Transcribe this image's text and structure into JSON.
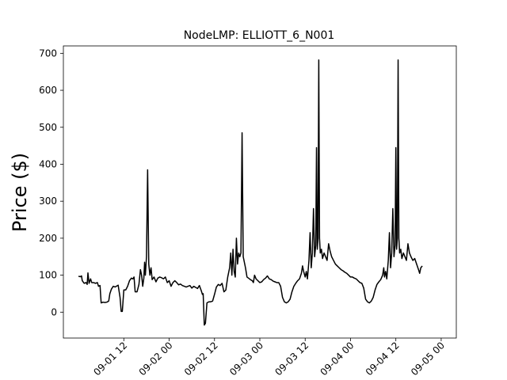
{
  "chart_data": {
    "type": "line",
    "title": "NodeLMP: ELLIOTT_6_N001",
    "xlabel": "",
    "ylabel": "Price ($)",
    "grid": false,
    "legend": "none",
    "line_color": "#000000",
    "xlim": [
      -4,
      100
    ],
    "ylim": [
      -70,
      720
    ],
    "yticks": [
      0,
      100,
      200,
      300,
      400,
      500,
      600,
      700
    ],
    "xticks": [
      {
        "hour": 12,
        "label": "09-01 12"
      },
      {
        "hour": 24,
        "label": "09-02 00"
      },
      {
        "hour": 36,
        "label": "09-02 12"
      },
      {
        "hour": 48,
        "label": "09-03 00"
      },
      {
        "hour": 60,
        "label": "09-03 12"
      },
      {
        "hour": 72,
        "label": "09-04 00"
      },
      {
        "hour": 84,
        "label": "09-04 12"
      },
      {
        "hour": 96,
        "label": "09-05 00"
      }
    ],
    "series": [
      {
        "points": [
          [
            0,
            97
          ],
          [
            0.5,
            96
          ],
          [
            0.8,
            98
          ],
          [
            1,
            85
          ],
          [
            1.5,
            78
          ],
          [
            2,
            80
          ],
          [
            2.3,
            75
          ],
          [
            2.5,
            106
          ],
          [
            2.8,
            78
          ],
          [
            3.2,
            90
          ],
          [
            3.5,
            80
          ],
          [
            4,
            80
          ],
          [
            4.5,
            78
          ],
          [
            5,
            80
          ],
          [
            5.3,
            70
          ],
          [
            5.7,
            72
          ],
          [
            6,
            25
          ],
          [
            6.5,
            27
          ],
          [
            7,
            26
          ],
          [
            7.5,
            27
          ],
          [
            8,
            30
          ],
          [
            8.3,
            50
          ],
          [
            8.7,
            62
          ],
          [
            9.2,
            70
          ],
          [
            9.7,
            68
          ],
          [
            10,
            70
          ],
          [
            10.5,
            73
          ],
          [
            11,
            40
          ],
          [
            11.3,
            2
          ],
          [
            11.6,
            2
          ],
          [
            12,
            60
          ],
          [
            12.5,
            60
          ],
          [
            13,
            70
          ],
          [
            13.5,
            85
          ],
          [
            14,
            92
          ],
          [
            14.4,
            90
          ],
          [
            14.7,
            95
          ],
          [
            15,
            55
          ],
          [
            15.5,
            55
          ],
          [
            16,
            75
          ],
          [
            16.4,
            115
          ],
          [
            16.7,
            100
          ],
          [
            17,
            70
          ],
          [
            17.3,
            92
          ],
          [
            17.5,
            135
          ],
          [
            17.7,
            100
          ],
          [
            18,
            150
          ],
          [
            18.3,
            385
          ],
          [
            18.6,
            130
          ],
          [
            18.9,
            100
          ],
          [
            19.2,
            120
          ],
          [
            19.5,
            88
          ],
          [
            20,
            95
          ],
          [
            20.5,
            82
          ],
          [
            21,
            92
          ],
          [
            21.5,
            95
          ],
          [
            22,
            93
          ],
          [
            22.5,
            90
          ],
          [
            23,
            95
          ],
          [
            23.5,
            80
          ],
          [
            24,
            85
          ],
          [
            24.5,
            70
          ],
          [
            25,
            80
          ],
          [
            25.5,
            85
          ],
          [
            26,
            80
          ],
          [
            26.5,
            74
          ],
          [
            27,
            76
          ],
          [
            27.5,
            72
          ],
          [
            28,
            70
          ],
          [
            28.5,
            68
          ],
          [
            29,
            70
          ],
          [
            29.5,
            72
          ],
          [
            30,
            65
          ],
          [
            30.5,
            70
          ],
          [
            31,
            67
          ],
          [
            31.5,
            64
          ],
          [
            32,
            72
          ],
          [
            32.5,
            58
          ],
          [
            32.8,
            48
          ],
          [
            33,
            50
          ],
          [
            33.3,
            -35
          ],
          [
            33.6,
            -30
          ],
          [
            34,
            25
          ],
          [
            34.5,
            28
          ],
          [
            35,
            28
          ],
          [
            35.5,
            30
          ],
          [
            36,
            48
          ],
          [
            36.5,
            68
          ],
          [
            37,
            75
          ],
          [
            37.5,
            72
          ],
          [
            38,
            78
          ],
          [
            38.5,
            55
          ],
          [
            39,
            60
          ],
          [
            39.5,
            95
          ],
          [
            40,
            120
          ],
          [
            40.3,
            160
          ],
          [
            40.6,
            100
          ],
          [
            40.9,
            170
          ],
          [
            41.2,
            110
          ],
          [
            41.5,
            95
          ],
          [
            41.8,
            200
          ],
          [
            42.1,
            130
          ],
          [
            42.4,
            160
          ],
          [
            42.7,
            150
          ],
          [
            43,
            160
          ],
          [
            43.3,
            485
          ],
          [
            43.6,
            150
          ],
          [
            43.9,
            135
          ],
          [
            44.2,
            120
          ],
          [
            44.6,
            95
          ],
          [
            45,
            92
          ],
          [
            45.5,
            88
          ],
          [
            46,
            85
          ],
          [
            46.3,
            80
          ],
          [
            46.6,
            100
          ],
          [
            47,
            90
          ],
          [
            47.5,
            85
          ],
          [
            48,
            80
          ],
          [
            48.5,
            82
          ],
          [
            49,
            88
          ],
          [
            49.5,
            92
          ],
          [
            50,
            98
          ],
          [
            50.5,
            90
          ],
          [
            51,
            88
          ],
          [
            51.5,
            84
          ],
          [
            52,
            82
          ],
          [
            52.5,
            80
          ],
          [
            53,
            80
          ],
          [
            53.5,
            70
          ],
          [
            54,
            40
          ],
          [
            54.5,
            28
          ],
          [
            55,
            25
          ],
          [
            55.5,
            28
          ],
          [
            56,
            35
          ],
          [
            56.5,
            55
          ],
          [
            57,
            70
          ],
          [
            57.5,
            78
          ],
          [
            58,
            85
          ],
          [
            58.5,
            90
          ],
          [
            59,
            105
          ],
          [
            59.3,
            125
          ],
          [
            59.6,
            110
          ],
          [
            60,
            95
          ],
          [
            60.3,
            110
          ],
          [
            60.6,
            90
          ],
          [
            61,
            140
          ],
          [
            61.3,
            215
          ],
          [
            61.6,
            120
          ],
          [
            61.9,
            160
          ],
          [
            62.2,
            280
          ],
          [
            62.5,
            150
          ],
          [
            62.8,
            180
          ],
          [
            63,
            445
          ],
          [
            63.2,
            170
          ],
          [
            63.4,
            200
          ],
          [
            63.6,
            682
          ],
          [
            63.8,
            200
          ],
          [
            64,
            160
          ],
          [
            64.3,
            170
          ],
          [
            64.6,
            145
          ],
          [
            65,
            160
          ],
          [
            65.4,
            150
          ],
          [
            65.8,
            140
          ],
          [
            66.2,
            185
          ],
          [
            66.6,
            165
          ],
          [
            67,
            150
          ],
          [
            67.5,
            140
          ],
          [
            68,
            130
          ],
          [
            68.5,
            125
          ],
          [
            69,
            120
          ],
          [
            69.5,
            115
          ],
          [
            70,
            112
          ],
          [
            70.5,
            108
          ],
          [
            71,
            105
          ],
          [
            71.5,
            100
          ],
          [
            72,
            95
          ],
          [
            72.5,
            95
          ],
          [
            73,
            92
          ],
          [
            73.5,
            90
          ],
          [
            74,
            85
          ],
          [
            74.5,
            80
          ],
          [
            75,
            78
          ],
          [
            75.5,
            65
          ],
          [
            76,
            35
          ],
          [
            76.5,
            28
          ],
          [
            77,
            25
          ],
          [
            77.5,
            30
          ],
          [
            78,
            40
          ],
          [
            78.5,
            60
          ],
          [
            79,
            75
          ],
          [
            79.5,
            82
          ],
          [
            80,
            88
          ],
          [
            80.5,
            100
          ],
          [
            80.8,
            120
          ],
          [
            81,
            95
          ],
          [
            81.3,
            110
          ],
          [
            81.6,
            90
          ],
          [
            82,
            140
          ],
          [
            82.3,
            215
          ],
          [
            82.6,
            120
          ],
          [
            82.9,
            160
          ],
          [
            83.2,
            280
          ],
          [
            83.5,
            150
          ],
          [
            83.8,
            180
          ],
          [
            84,
            445
          ],
          [
            84.2,
            170
          ],
          [
            84.4,
            200
          ],
          [
            84.6,
            682
          ],
          [
            84.8,
            200
          ],
          [
            85,
            160
          ],
          [
            85.3,
            170
          ],
          [
            85.6,
            145
          ],
          [
            86,
            160
          ],
          [
            86.4,
            150
          ],
          [
            86.8,
            140
          ],
          [
            87.2,
            185
          ],
          [
            87.6,
            160
          ],
          [
            88,
            150
          ],
          [
            88.5,
            140
          ],
          [
            89,
            145
          ],
          [
            89.5,
            130
          ],
          [
            90,
            115
          ],
          [
            90.3,
            105
          ],
          [
            90.6,
            120
          ],
          [
            91,
            125
          ]
        ]
      }
    ]
  }
}
